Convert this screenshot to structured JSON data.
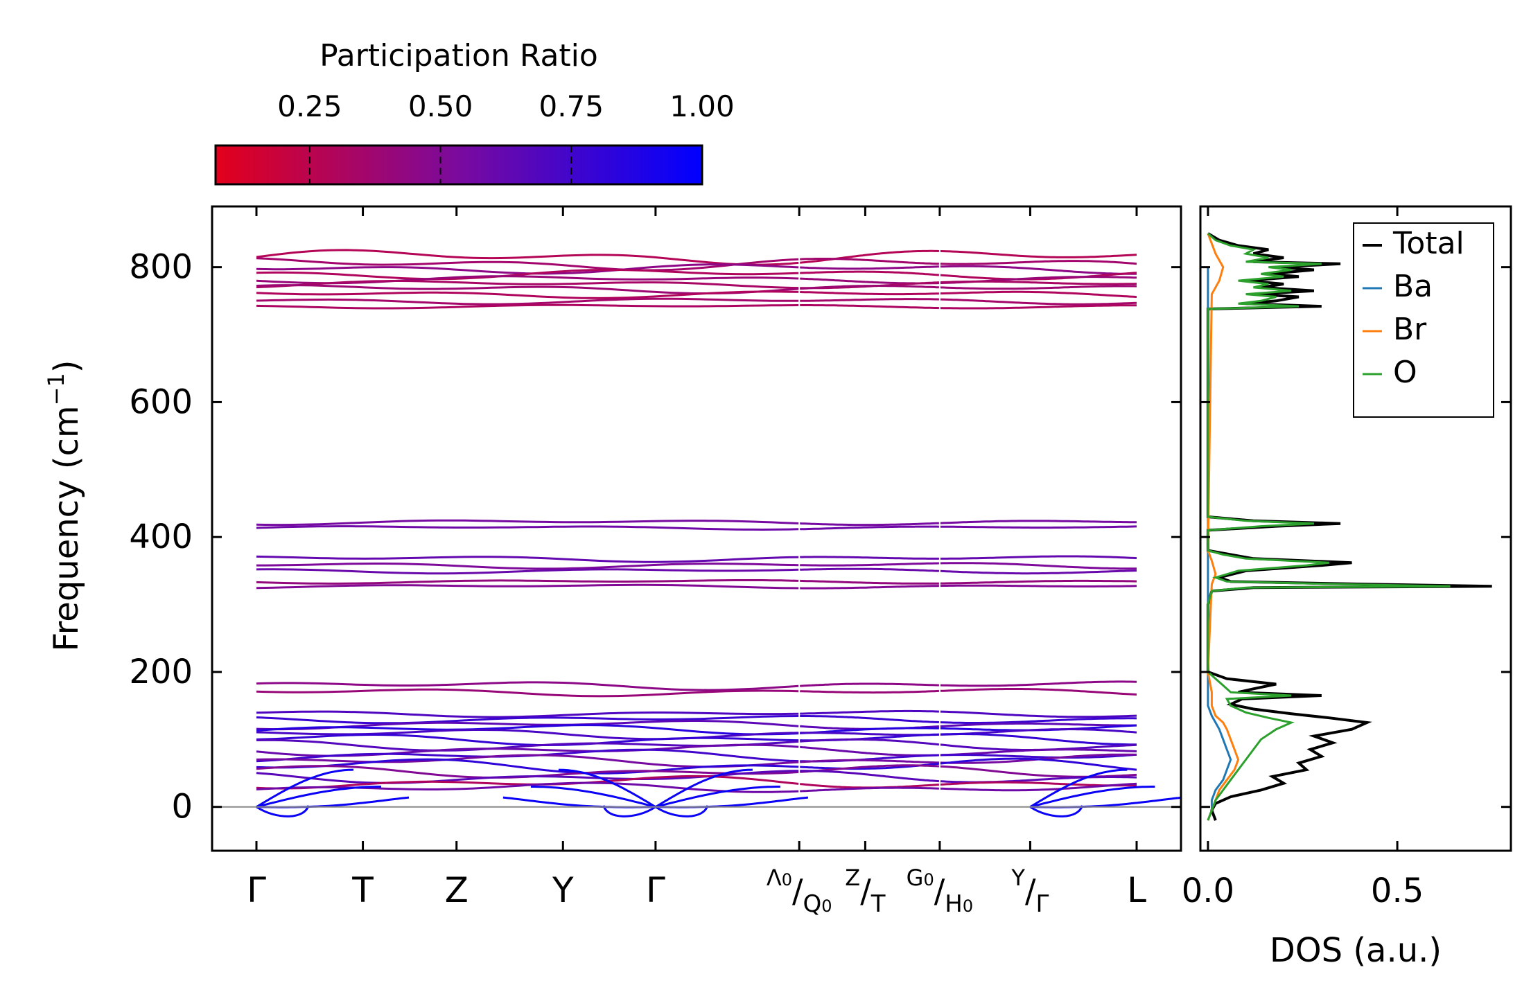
{
  "chart_data": [
    {
      "type": "line",
      "subtype": "phonon-band-structure",
      "ylabel": "Frequency (cm",
      "ylabel_exp": "−1",
      "ylabel_close": ")",
      "ylim": [
        -65,
        890
      ],
      "yticks": [
        0,
        200,
        400,
        600,
        800
      ],
      "ytick_labels": [
        "0",
        "200",
        "400",
        "600",
        "800"
      ],
      "x_segments": [
        {
          "from": "Γ",
          "to": "T",
          "length": 1.0
        },
        {
          "from": "T",
          "to": "Z",
          "length": 0.88
        },
        {
          "from": "Z",
          "to": "Y",
          "length": 1.0
        },
        {
          "from": "Y",
          "to": "Γ",
          "length": 0.87
        },
        {
          "from": "Γ",
          "to": "Λ0|Q0",
          "length": 1.35
        },
        {
          "from": "Q0",
          "to": "Z|T",
          "length": 0.62
        },
        {
          "from": "T",
          "to": "G0|H0",
          "length": 0.7
        },
        {
          "from": "H0",
          "to": "Y|Γ",
          "length": 0.85
        },
        {
          "from": "Γ",
          "to": "L",
          "length": 1.0
        }
      ],
      "path_breaks_after_segment": [
        5,
        7
      ],
      "x_tick_labels": [
        {
          "main": "Γ"
        },
        {
          "main": "T"
        },
        {
          "main": "Z"
        },
        {
          "main": "Y"
        },
        {
          "main": "Γ"
        },
        {
          "a": "Λ",
          "a_sub": "0",
          "sep": "/",
          "b": "Q",
          "b_sub": "0"
        },
        {
          "a": "Z",
          "a_sub": "",
          "sep": "/",
          "b": "T",
          "b_sub": ""
        },
        {
          "a": "G",
          "a_sub": "0",
          "sep": "/",
          "b": "H",
          "b_sub": "0"
        },
        {
          "a": "Y",
          "a_sub": "",
          "sep": "/",
          "b": "Γ",
          "b_sub": ""
        },
        {
          "main": "L"
        }
      ],
      "zero_line": 0,
      "color_by": "participation ratio",
      "bands": [
        {
          "group": "high",
          "base": 815,
          "amp": 12,
          "pr": 0.28
        },
        {
          "group": "high",
          "base": 805,
          "amp": 10,
          "pr": 0.36
        },
        {
          "group": "high",
          "base": 798,
          "amp": 8,
          "pr": 0.45
        },
        {
          "group": "high",
          "base": 790,
          "amp": 8,
          "pr": 0.3
        },
        {
          "group": "high",
          "base": 782,
          "amp": 6,
          "pr": 0.4
        },
        {
          "group": "high",
          "base": 775,
          "amp": 6,
          "pr": 0.33
        },
        {
          "group": "high",
          "base": 768,
          "amp": 7,
          "pr": 0.38
        },
        {
          "group": "high",
          "base": 760,
          "amp": 6,
          "pr": 0.3
        },
        {
          "group": "high",
          "base": 750,
          "amp": 5,
          "pr": 0.35
        },
        {
          "group": "high",
          "base": 742,
          "amp": 3,
          "pr": 0.32
        },
        {
          "group": "mid",
          "base": 422,
          "amp": 4,
          "pr": 0.55
        },
        {
          "group": "mid",
          "base": 414,
          "amp": 3,
          "pr": 0.58
        },
        {
          "group": "mid",
          "base": 368,
          "amp": 5,
          "pr": 0.62
        },
        {
          "group": "mid",
          "base": 358,
          "amp": 5,
          "pr": 0.52
        },
        {
          "group": "mid",
          "base": 350,
          "amp": 4,
          "pr": 0.6
        },
        {
          "group": "mid",
          "base": 334,
          "amp": 3,
          "pr": 0.42
        },
        {
          "group": "mid",
          "base": 327,
          "amp": 3,
          "pr": 0.5
        },
        {
          "group": "low",
          "base": 180,
          "amp": 7,
          "pr": 0.45
        },
        {
          "group": "low",
          "base": 170,
          "amp": 6,
          "pr": 0.4
        },
        {
          "group": "low",
          "base": 138,
          "amp": 5,
          "pr": 0.7
        },
        {
          "group": "low",
          "base": 130,
          "amp": 6,
          "pr": 0.78
        },
        {
          "group": "low",
          "base": 122,
          "amp": 7,
          "pr": 0.65
        },
        {
          "group": "low",
          "base": 115,
          "amp": 8,
          "pr": 0.85
        },
        {
          "group": "low",
          "base": 108,
          "amp": 8,
          "pr": 0.72
        },
        {
          "group": "low",
          "base": 100,
          "amp": 9,
          "pr": 0.8
        },
        {
          "group": "low",
          "base": 92,
          "amp": 9,
          "pr": 0.68
        },
        {
          "group": "low",
          "base": 84,
          "amp": 9,
          "pr": 0.6
        },
        {
          "group": "low",
          "base": 76,
          "amp": 10,
          "pr": 0.75
        },
        {
          "group": "low",
          "base": 68,
          "amp": 10,
          "pr": 0.55
        },
        {
          "group": "low",
          "base": 60,
          "amp": 12,
          "pr": 0.82
        },
        {
          "group": "low",
          "base": 52,
          "amp": 10,
          "pr": 0.5
        },
        {
          "group": "low",
          "base": 44,
          "amp": 10,
          "pr": 0.66
        },
        {
          "group": "low",
          "base": 36,
          "amp": 10,
          "pr": 0.3
        },
        {
          "group": "low",
          "base": 28,
          "amp": 8,
          "pr": 0.58
        }
      ],
      "acoustic_pr": 0.96
    },
    {
      "type": "colorbar",
      "title": "Participation Ratio",
      "range": [
        0.07,
        1.0
      ],
      "ticks": [
        0.25,
        0.5,
        0.75,
        1.0
      ],
      "tick_labels": [
        "0.25",
        "0.50",
        "0.75",
        "1.00"
      ],
      "color_low": "#e3001b",
      "color_mid": "#7a0a9e",
      "color_high": "#0000ff"
    },
    {
      "type": "line",
      "subtype": "density-of-states",
      "xlabel": "DOS (a.u.)",
      "xlim": [
        -0.02,
        0.8
      ],
      "xticks": [
        0.0,
        0.5
      ],
      "xtick_labels": [
        "0.0",
        "0.5"
      ],
      "ylim": [
        -65,
        890
      ],
      "legend_position": "top-right",
      "series": [
        {
          "name": "Total",
          "color": "#000000",
          "y": [
            -20,
            -5,
            5,
            15,
            25,
            35,
            45,
            55,
            65,
            75,
            85,
            95,
            105,
            115,
            125,
            132,
            138,
            145,
            152,
            160,
            165,
            170,
            175,
            182,
            190,
            200,
            300,
            320,
            325,
            327,
            330,
            334,
            340,
            350,
            358,
            362,
            368,
            374,
            380,
            410,
            416,
            420,
            424,
            430,
            600,
            738,
            742,
            746,
            750,
            756,
            760,
            765,
            770,
            775,
            780,
            786,
            790,
            796,
            800,
            805,
            808,
            814,
            820,
            826,
            832,
            840,
            850
          ],
          "x": [
            0.02,
            0.01,
            0.02,
            0.06,
            0.14,
            0.2,
            0.17,
            0.26,
            0.24,
            0.3,
            0.27,
            0.33,
            0.28,
            0.38,
            0.42,
            0.32,
            0.22,
            0.12,
            0.06,
            0.09,
            0.3,
            0.08,
            0.12,
            0.18,
            0.05,
            0.0,
            0.0,
            0.01,
            0.12,
            0.75,
            0.42,
            0.06,
            0.03,
            0.1,
            0.3,
            0.38,
            0.12,
            0.06,
            0.0,
            0.0,
            0.18,
            0.35,
            0.12,
            0.0,
            0.0,
            0.0,
            0.3,
            0.1,
            0.18,
            0.24,
            0.12,
            0.28,
            0.14,
            0.2,
            0.1,
            0.24,
            0.16,
            0.28,
            0.18,
            0.35,
            0.12,
            0.2,
            0.12,
            0.16,
            0.08,
            0.03,
            0.0
          ]
        },
        {
          "name": "Ba",
          "color": "#1f77b4",
          "y": [
            -20,
            -5,
            10,
            25,
            40,
            55,
            70,
            85,
            100,
            115,
            125,
            135,
            150,
            170,
            200,
            800
          ],
          "x": [
            0.0,
            0.01,
            0.01,
            0.02,
            0.04,
            0.05,
            0.06,
            0.05,
            0.04,
            0.03,
            0.02,
            0.01,
            0.0,
            0.0,
            0.0,
            0.0
          ]
        },
        {
          "name": "Br",
          "color": "#ff7f0e",
          "y": [
            -20,
            -5,
            10,
            25,
            40,
            55,
            70,
            85,
            100,
            115,
            125,
            135,
            150,
            170,
            200,
            330,
            345,
            365,
            380,
            760,
            780,
            800,
            820,
            850
          ],
          "x": [
            0.0,
            0.01,
            0.02,
            0.03,
            0.05,
            0.07,
            0.08,
            0.07,
            0.06,
            0.05,
            0.04,
            0.02,
            0.01,
            0.01,
            0.0,
            0.01,
            0.02,
            0.01,
            0.0,
            0.01,
            0.03,
            0.04,
            0.02,
            0.0
          ]
        },
        {
          "name": "O",
          "color": "#2ca02c",
          "y": [
            -20,
            -5,
            10,
            25,
            40,
            55,
            70,
            85,
            100,
            115,
            125,
            132,
            140,
            150,
            160,
            165,
            170,
            180,
            190,
            200,
            300,
            320,
            325,
            327,
            330,
            334,
            340,
            350,
            358,
            362,
            368,
            374,
            380,
            410,
            416,
            420,
            424,
            430,
            600,
            738,
            742,
            746,
            750,
            756,
            760,
            765,
            770,
            775,
            780,
            786,
            790,
            796,
            800,
            805,
            808,
            814,
            820,
            826,
            832,
            840,
            850
          ],
          "x": [
            0.0,
            0.01,
            0.02,
            0.04,
            0.06,
            0.08,
            0.1,
            0.12,
            0.14,
            0.18,
            0.22,
            0.16,
            0.1,
            0.06,
            0.05,
            0.22,
            0.06,
            0.04,
            0.02,
            0.0,
            0.0,
            0.01,
            0.1,
            0.64,
            0.35,
            0.05,
            0.02,
            0.08,
            0.26,
            0.32,
            0.1,
            0.04,
            0.0,
            0.0,
            0.14,
            0.28,
            0.1,
            0.0,
            0.0,
            0.0,
            0.24,
            0.08,
            0.14,
            0.18,
            0.1,
            0.22,
            0.12,
            0.16,
            0.08,
            0.2,
            0.14,
            0.22,
            0.16,
            0.3,
            0.1,
            0.16,
            0.1,
            0.12,
            0.06,
            0.02,
            0.0
          ]
        }
      ]
    }
  ]
}
